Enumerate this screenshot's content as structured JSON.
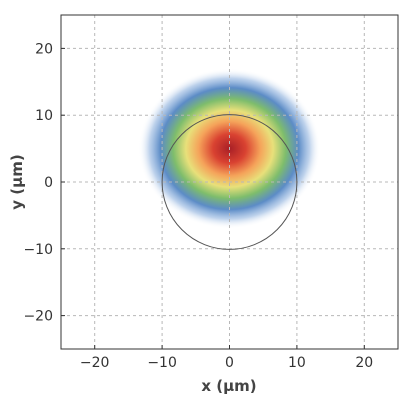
{
  "chart_data": {
    "type": "heatmap",
    "title": "",
    "xlabel": "x (µm)",
    "ylabel": "y (µm)",
    "xlim": [
      -25,
      25
    ],
    "ylim": [
      -25,
      25
    ],
    "x_ticks": [
      -20,
      -10,
      0,
      10,
      20
    ],
    "y_ticks": [
      -20,
      -10,
      0,
      10,
      20
    ],
    "x_tick_labels": [
      "−20",
      "−10",
      "0",
      "10",
      "20"
    ],
    "y_tick_labels": [
      "−20",
      "−10",
      "0",
      "10",
      "20"
    ],
    "grid": true,
    "intensity_distribution": {
      "shape": "gaussian",
      "center": [
        0,
        5
      ],
      "sigma_x": 4.5,
      "sigma_y": 4.0,
      "colormap": [
        "#ffffff",
        "#4a7fc0",
        "#8cc06a",
        "#f5d26a",
        "#e05a36",
        "#a81f26"
      ]
    },
    "circle": {
      "center": [
        0,
        0
      ],
      "radius": 10
    }
  },
  "colors": {
    "frame": "#333333",
    "grid": "#b8b8b8",
    "circle": "#555555"
  }
}
